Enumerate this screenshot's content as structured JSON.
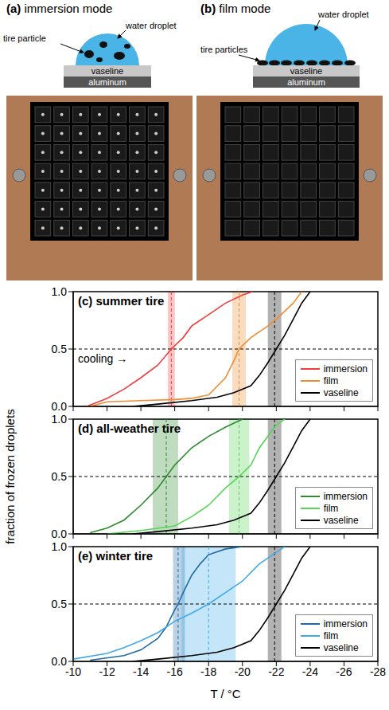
{
  "schematics": [
    {
      "label": "(a)",
      "title": "immersion mode",
      "droplet": "water droplet",
      "particles": "tire particle",
      "layers": [
        "vaseline",
        "aluminum"
      ]
    },
    {
      "label": "(b)",
      "title": "film mode",
      "droplet": "water droplet",
      "particles": "tire particles",
      "layers": [
        "vaseline",
        "aluminum"
      ]
    }
  ],
  "chart_data": [
    {
      "type": "line",
      "panel": "(c)",
      "title": "summer tire",
      "annotations": [
        "cooling →"
      ],
      "xlim": [
        -10,
        -28
      ],
      "xticks": [
        -10,
        -12,
        -14,
        -16,
        -18,
        -20,
        -22,
        -24,
        -26,
        -28
      ],
      "ylim": [
        0,
        1
      ],
      "yticks": [
        {
          "value": 0,
          "label": "0.0"
        },
        0.5,
        {
          "value": 1,
          "label": "1.0"
        }
      ],
      "tick_labels": "y",
      "legend": "lower right",
      "median_line_y": 0.5,
      "series": [
        {
          "name": "immersion",
          "color": "#f03c3c",
          "t50": -15.8,
          "t50_range": [
            -15.6,
            -16.0
          ],
          "x": [
            -10.8,
            -12,
            -13,
            -14,
            -15,
            -15.8,
            -16.5,
            -17,
            -18,
            -19,
            -20,
            -20.6
          ],
          "values": [
            0,
            0.07,
            0.15,
            0.25,
            0.36,
            0.5,
            0.6,
            0.7,
            0.8,
            0.9,
            0.97,
            1.0
          ]
        },
        {
          "name": "film",
          "color": "#f08c32",
          "t50": -19.8,
          "t50_range": [
            -19.4,
            -20.2
          ],
          "x": [
            -11,
            -12,
            -14,
            -16,
            -17,
            -18,
            -19,
            -19.5,
            -19.8,
            -20.5,
            -21.5,
            -22,
            -23,
            -23.5
          ],
          "values": [
            0,
            0.04,
            0.05,
            0.06,
            0.07,
            0.1,
            0.25,
            0.4,
            0.5,
            0.6,
            0.7,
            0.76,
            0.9,
            1.0
          ]
        },
        {
          "name": "vaseline",
          "color": "#000000",
          "t50": -21.9,
          "t50_range": [
            -21.5,
            -22.3
          ],
          "x": [
            -13.5,
            -15,
            -17,
            -18.5,
            -19.5,
            -20.5,
            -21,
            -21.5,
            -22,
            -22.5,
            -23,
            -23.5,
            -24
          ],
          "values": [
            0,
            0.02,
            0.05,
            0.08,
            0.12,
            0.18,
            0.27,
            0.38,
            0.5,
            0.62,
            0.76,
            0.9,
            1.0
          ]
        }
      ]
    },
    {
      "type": "line",
      "panel": "(d)",
      "title": "all-weather tire",
      "ylabel": "fraction of frozen droplets",
      "xlim": [
        -10,
        -28
      ],
      "xticks": [
        -10,
        -12,
        -14,
        -16,
        -18,
        -20,
        -22,
        -24,
        -26,
        -28
      ],
      "ylim": [
        0,
        1
      ],
      "yticks": [
        {
          "value": 0,
          "label": "0.0"
        },
        0.5,
        {
          "value": 1,
          "label": "1.0"
        }
      ],
      "tick_labels": "y",
      "legend": "lower right",
      "median_line_y": 0.5,
      "series": [
        {
          "name": "immersion",
          "color": "#2e8b2e",
          "t50": -15.5,
          "t50_range": [
            -14.7,
            -16.2
          ],
          "x": [
            -11,
            -12,
            -13,
            -14,
            -15,
            -15.5,
            -16,
            -17,
            -18,
            -19,
            -20
          ],
          "values": [
            0.01,
            0.05,
            0.12,
            0.25,
            0.4,
            0.5,
            0.6,
            0.75,
            0.85,
            0.93,
            1.0
          ]
        },
        {
          "name": "film",
          "color": "#55d455",
          "t50": -19.8,
          "t50_range": [
            -19.2,
            -20.4
          ],
          "x": [
            -12,
            -14,
            -16,
            -17,
            -18,
            -19,
            -19.8,
            -20.5,
            -21,
            -21.5,
            -22,
            -22.5
          ],
          "values": [
            0,
            0.03,
            0.07,
            0.15,
            0.25,
            0.4,
            0.5,
            0.6,
            0.75,
            0.85,
            0.95,
            1.0
          ]
        },
        {
          "name": "vaseline",
          "color": "#000000",
          "t50": -21.9,
          "t50_range": [
            -21.5,
            -22.3
          ],
          "x": [
            -13.5,
            -15,
            -17,
            -18.5,
            -19.5,
            -20.5,
            -21,
            -21.5,
            -22,
            -22.5,
            -23,
            -23.5,
            -24
          ],
          "values": [
            0,
            0.02,
            0.05,
            0.08,
            0.12,
            0.18,
            0.27,
            0.38,
            0.5,
            0.62,
            0.76,
            0.9,
            1.0
          ]
        }
      ]
    },
    {
      "type": "line",
      "panel": "(e)",
      "title": "winter tire",
      "xlabel": "T / °C",
      "xlim": [
        -10,
        -28
      ],
      "xticks": [
        -10,
        -12,
        -14,
        -16,
        -18,
        -20,
        -22,
        -24,
        -26,
        -28
      ],
      "ylim": [
        0,
        1
      ],
      "yticks": [
        {
          "value": 0,
          "label": "0.0"
        },
        0.5,
        {
          "value": 1,
          "label": "1.0"
        }
      ],
      "legend": "lower right",
      "median_line_y": 0.5,
      "series": [
        {
          "name": "immersion",
          "color": "#1f6aa5",
          "t50": -16.2,
          "t50_range": [
            -15.9,
            -16.6
          ],
          "x": [
            -11,
            -13,
            -14,
            -15,
            -15.5,
            -16,
            -16.2,
            -16.5,
            -17,
            -17.5,
            -18,
            -19,
            -20
          ],
          "values": [
            0.01,
            0.05,
            0.1,
            0.2,
            0.3,
            0.45,
            0.5,
            0.6,
            0.75,
            0.85,
            0.93,
            0.98,
            1.0
          ]
        },
        {
          "name": "film",
          "color": "#3fa9e8",
          "t50": -18.0,
          "t50_range": [
            -16.4,
            -19.6
          ],
          "x": [
            -10,
            -12,
            -13,
            -14,
            -15,
            -16,
            -17,
            -18,
            -19,
            -20,
            -21,
            -22,
            -22.5
          ],
          "values": [
            0.02,
            0.07,
            0.12,
            0.18,
            0.25,
            0.35,
            0.42,
            0.5,
            0.6,
            0.7,
            0.85,
            0.95,
            1.0
          ]
        },
        {
          "name": "vaseline",
          "color": "#000000",
          "t50": -21.9,
          "t50_range": [
            -21.5,
            -22.3
          ],
          "x": [
            -13.5,
            -15,
            -17,
            -18.5,
            -19.5,
            -20.5,
            -21,
            -21.5,
            -22,
            -22.5,
            -23,
            -23.5,
            -24
          ],
          "values": [
            0,
            0.02,
            0.05,
            0.08,
            0.12,
            0.18,
            0.27,
            0.38,
            0.5,
            0.62,
            0.76,
            0.9,
            1.0
          ]
        }
      ]
    }
  ]
}
